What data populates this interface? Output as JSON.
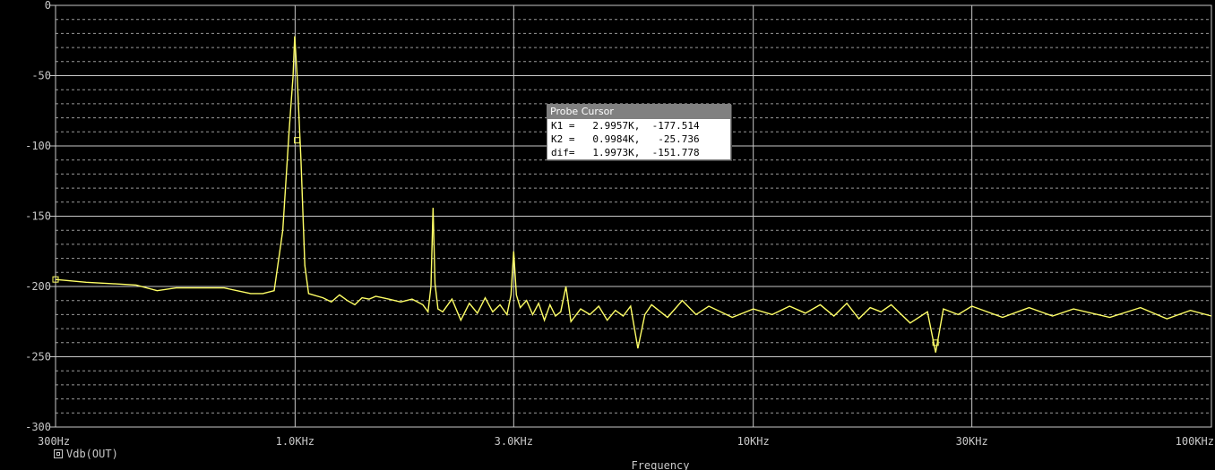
{
  "chart_data": {
    "type": "line",
    "title": "",
    "xlabel": "Frequency",
    "ylabel": "",
    "x_scale": "log",
    "xlim": [
      300,
      100000
    ],
    "ylim": [
      -300,
      0
    ],
    "x_ticks": [
      {
        "value": 300,
        "label": "300Hz"
      },
      {
        "value": 1000,
        "label": "1.0KHz"
      },
      {
        "value": 3000,
        "label": "3.0KHz"
      },
      {
        "value": 10000,
        "label": "10KHz"
      },
      {
        "value": 30000,
        "label": "30KHz"
      },
      {
        "value": 100000,
        "label": "100KHz"
      }
    ],
    "y_ticks": [
      {
        "value": 0,
        "label": "0"
      },
      {
        "value": -50,
        "label": "-50"
      },
      {
        "value": -100,
        "label": "-100"
      },
      {
        "value": -150,
        "label": "-150"
      },
      {
        "value": -200,
        "label": "-200"
      },
      {
        "value": -250,
        "label": "-250"
      },
      {
        "value": -300,
        "label": "-300"
      }
    ],
    "grid": true,
    "legend": "bottom-left",
    "series": [
      {
        "name": "Vdb(OUT)",
        "color": "#ffff66",
        "points": [
          [
            300,
            -195
          ],
          [
            350,
            -197
          ],
          [
            400,
            -198
          ],
          [
            450,
            -199
          ],
          [
            500,
            -203
          ],
          [
            550,
            -201
          ],
          [
            600,
            -201
          ],
          [
            700,
            -201
          ],
          [
            800,
            -205
          ],
          [
            850,
            -205
          ],
          [
            900,
            -203
          ],
          [
            940,
            -160
          ],
          [
            970,
            -90
          ],
          [
            990,
            -50
          ],
          [
            998,
            -22
          ],
          [
            1010,
            -50
          ],
          [
            1030,
            -110
          ],
          [
            1050,
            -185
          ],
          [
            1070,
            -205
          ],
          [
            1150,
            -208
          ],
          [
            1200,
            -211
          ],
          [
            1250,
            -206
          ],
          [
            1300,
            -210
          ],
          [
            1350,
            -213
          ],
          [
            1400,
            -208
          ],
          [
            1450,
            -209
          ],
          [
            1500,
            -207
          ],
          [
            1600,
            -209
          ],
          [
            1700,
            -211
          ],
          [
            1800,
            -209
          ],
          [
            1900,
            -213
          ],
          [
            1950,
            -218
          ],
          [
            1980,
            -200
          ],
          [
            2000,
            -144
          ],
          [
            2020,
            -198
          ],
          [
            2050,
            -216
          ],
          [
            2100,
            -218
          ],
          [
            2200,
            -209
          ],
          [
            2300,
            -224
          ],
          [
            2400,
            -212
          ],
          [
            2500,
            -219
          ],
          [
            2600,
            -208
          ],
          [
            2700,
            -218
          ],
          [
            2800,
            -213
          ],
          [
            2900,
            -220
          ],
          [
            2960,
            -206
          ],
          [
            3000,
            -175
          ],
          [
            3040,
            -206
          ],
          [
            3100,
            -215
          ],
          [
            3200,
            -210
          ],
          [
            3300,
            -220
          ],
          [
            3400,
            -212
          ],
          [
            3500,
            -224
          ],
          [
            3600,
            -213
          ],
          [
            3700,
            -221
          ],
          [
            3800,
            -218
          ],
          [
            3900,
            -200
          ],
          [
            4000,
            -225
          ],
          [
            4200,
            -216
          ],
          [
            4400,
            -220
          ],
          [
            4600,
            -214
          ],
          [
            4800,
            -224
          ],
          [
            5000,
            -217
          ],
          [
            5200,
            -221
          ],
          [
            5400,
            -214
          ],
          [
            5600,
            -244
          ],
          [
            5800,
            -220
          ],
          [
            6000,
            -213
          ],
          [
            6500,
            -222
          ],
          [
            7000,
            -210
          ],
          [
            7500,
            -220
          ],
          [
            8000,
            -214
          ],
          [
            9000,
            -222
          ],
          [
            10000,
            -216
          ],
          [
            11000,
            -220
          ],
          [
            12000,
            -214
          ],
          [
            13000,
            -219
          ],
          [
            14000,
            -213
          ],
          [
            15000,
            -221
          ],
          [
            16000,
            -212
          ],
          [
            17000,
            -223
          ],
          [
            18000,
            -215
          ],
          [
            19000,
            -218
          ],
          [
            20000,
            -213
          ],
          [
            22000,
            -226
          ],
          [
            24000,
            -218
          ],
          [
            25000,
            -247
          ],
          [
            26000,
            -216
          ],
          [
            28000,
            -220
          ],
          [
            30000,
            -214
          ],
          [
            35000,
            -222
          ],
          [
            40000,
            -215
          ],
          [
            45000,
            -221
          ],
          [
            50000,
            -216
          ],
          [
            60000,
            -222
          ],
          [
            70000,
            -215
          ],
          [
            80000,
            -223
          ],
          [
            90000,
            -217
          ],
          [
            100000,
            -221
          ]
        ]
      }
    ],
    "markers": [
      {
        "x": 300,
        "y": -195
      },
      {
        "x": 1010,
        "y": -96
      },
      {
        "x": 25000,
        "y": -240
      }
    ]
  },
  "probe_cursor": {
    "title": "Probe Cursor",
    "rows": [
      "K1 =   2.9957K,  -177.514",
      "K2 =   0.9984K,   -25.736",
      "dif=   1.9973K,  -151.778"
    ]
  }
}
